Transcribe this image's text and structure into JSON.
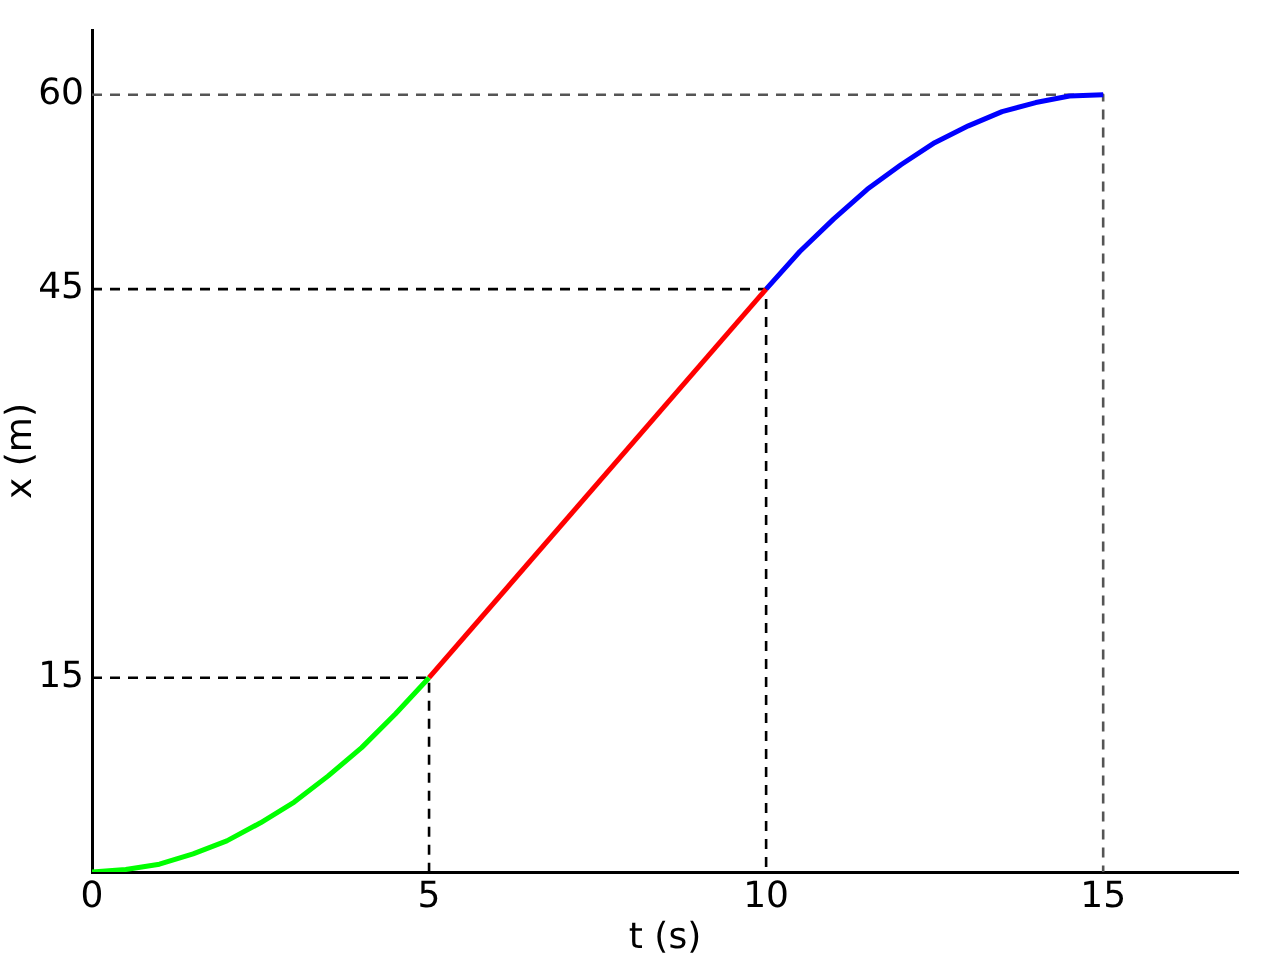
{
  "chart_data": {
    "type": "line",
    "xlabel": "t (s)",
    "ylabel": "x (m)",
    "xlim": [
      0,
      17
    ],
    "ylim": [
      0,
      65
    ],
    "xticks": [
      0,
      5,
      10,
      15
    ],
    "yticks": [
      15,
      45,
      60
    ],
    "grid": false,
    "legend": false,
    "marker": "none",
    "series": [
      {
        "color": "#00ff00",
        "x": [
          0,
          0.5,
          1,
          1.5,
          2,
          2.5,
          3,
          3.5,
          4,
          4.5,
          5
        ],
        "values": [
          0,
          0.2,
          0.6,
          1.4,
          2.4,
          3.8,
          5.4,
          7.4,
          9.6,
          12.2,
          15
        ]
      },
      {
        "color": "#ff0000",
        "x": [
          5,
          10
        ],
        "values": [
          15,
          45
        ]
      },
      {
        "color": "#0000ff",
        "x": [
          10,
          10.5,
          11,
          11.5,
          12,
          12.5,
          13,
          13.5,
          14,
          14.5,
          15
        ],
        "values": [
          45,
          47.9,
          50.4,
          52.7,
          54.6,
          56.3,
          57.6,
          58.7,
          59.4,
          59.9,
          60
        ]
      },
      {
        "color": "#000000",
        "line_style": "dashed",
        "x": [
          0,
          5,
          5
        ],
        "values": [
          15,
          15,
          0
        ]
      },
      {
        "color": "#000000",
        "line_style": "dashed",
        "x": [
          0,
          10,
          10
        ],
        "values": [
          45,
          45,
          0
        ]
      },
      {
        "color": "#555555",
        "line_style": "dashed",
        "x": [
          0,
          15,
          15
        ],
        "values": [
          60,
          60,
          0
        ]
      }
    ]
  }
}
